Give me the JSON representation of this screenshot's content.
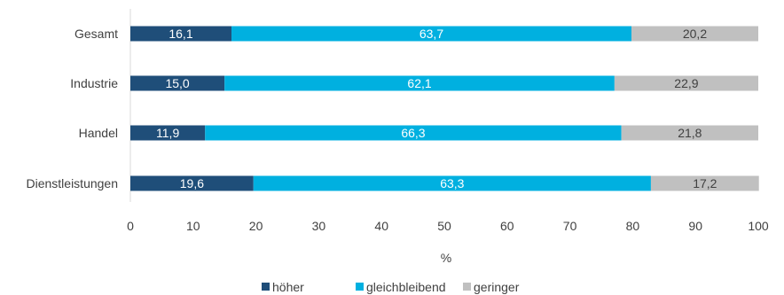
{
  "chart_data": {
    "type": "bar",
    "orientation": "horizontal",
    "stacked": true,
    "categories": [
      "Gesamt",
      "Industrie",
      "Handel",
      "Dienstleistungen"
    ],
    "series": [
      {
        "name": "höher",
        "values": [
          16.1,
          15.0,
          11.9,
          19.6
        ],
        "labels": [
          "16,1",
          "15,0",
          "11,9",
          "19,6"
        ],
        "color": "#1f4e79",
        "label_color": "#ffffff"
      },
      {
        "name": "gleichbleibend",
        "values": [
          63.7,
          62.1,
          66.3,
          63.3
        ],
        "labels": [
          "63,7",
          "62,1",
          "66,3",
          "63,3"
        ],
        "color": "#00b0e0",
        "label_color": "#ffffff"
      },
      {
        "name": "geringer",
        "values": [
          20.2,
          22.9,
          21.8,
          17.2
        ],
        "labels": [
          "20,2",
          "22,9",
          "21,8",
          "17,2"
        ],
        "color": "#c0c0c0",
        "label_color": "#404040"
      }
    ],
    "xlabel": "%",
    "xlim": [
      0,
      100
    ],
    "xticks": [
      0,
      10,
      20,
      30,
      40,
      50,
      60,
      70,
      80,
      90,
      100
    ],
    "grid": false,
    "legend": "bottom"
  }
}
